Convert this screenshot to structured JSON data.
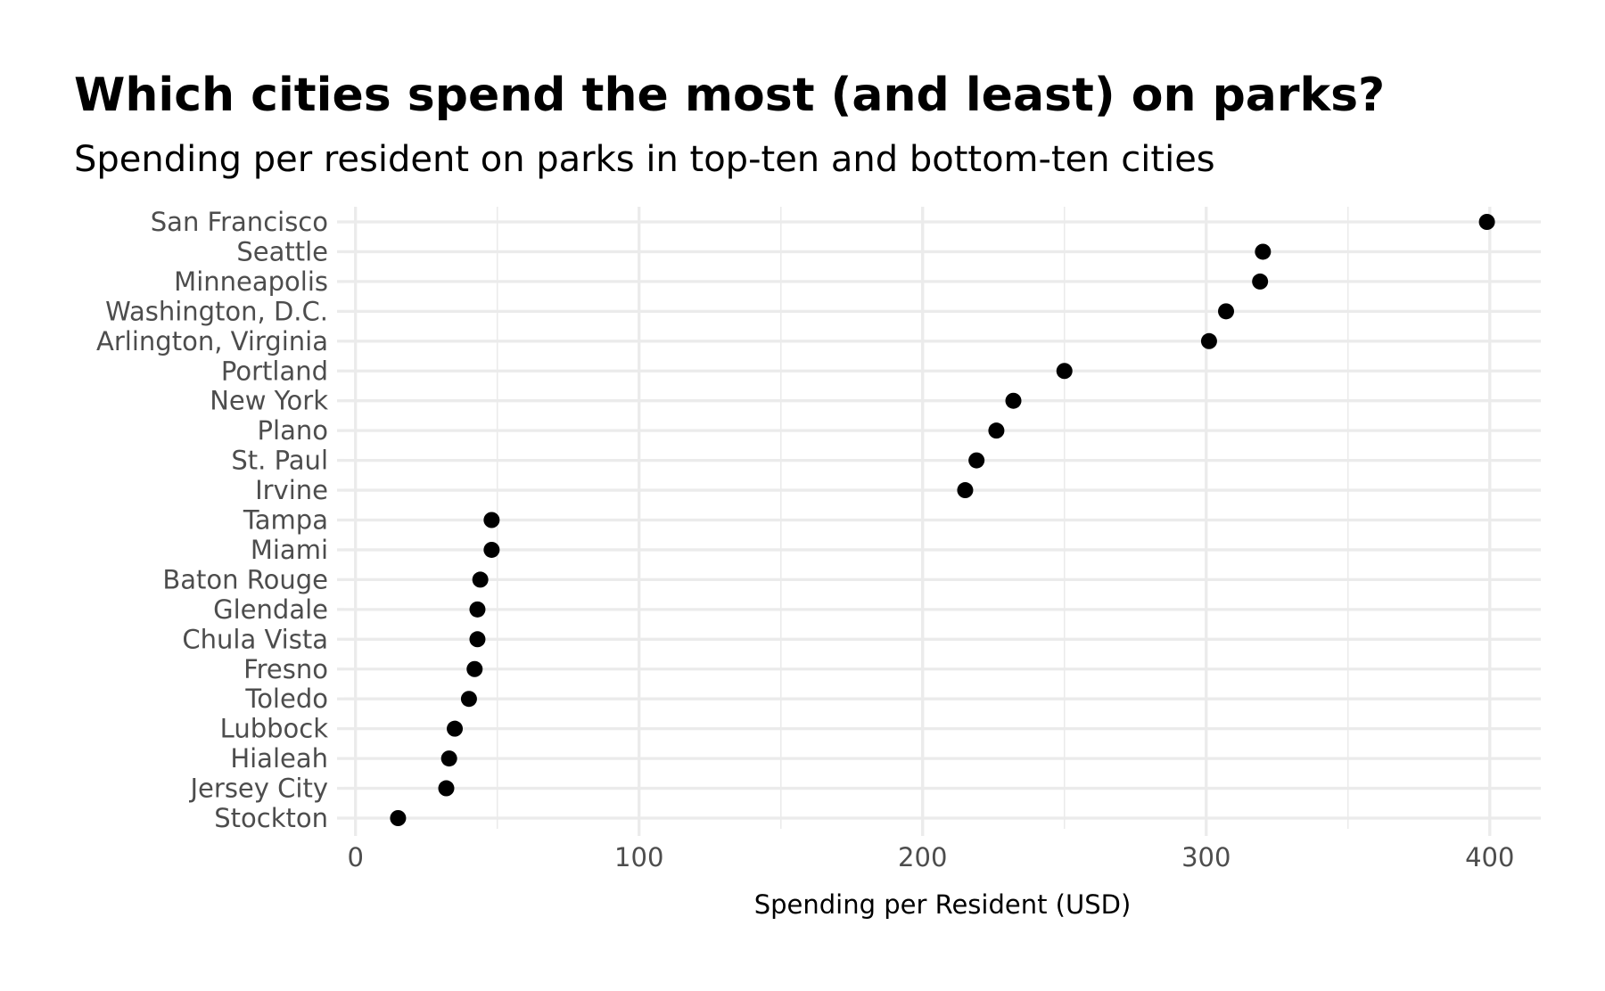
{
  "chart_data": {
    "type": "scatter",
    "title": "Which cities spend the most (and least) on parks?",
    "subtitle": "Spending per resident on parks in top-ten and bottom-ten cities",
    "xlabel": "Spending per Resident (USD)",
    "ylabel": "",
    "xlim": [
      -4,
      418
    ],
    "x_ticks": [
      0,
      100,
      200,
      300,
      400
    ],
    "x_tick_labels": [
      "0",
      "100",
      "200",
      "300",
      "400"
    ],
    "x_minor_ticks": [
      50,
      150,
      250,
      350
    ],
    "grid": true,
    "legend": "none",
    "point_color": "#000000",
    "gridline_color": "#ebebeb",
    "categories": [
      "San Francisco",
      "Seattle",
      "Minneapolis",
      "Washington, D.C.",
      "Arlington, Virginia",
      "Portland",
      "New York",
      "Plano",
      "St. Paul",
      "Irvine",
      "Tampa",
      "Miami",
      "Baton Rouge",
      "Glendale",
      "Chula Vista",
      "Fresno",
      "Toledo",
      "Lubbock",
      "Hialeah",
      "Jersey City",
      "Stockton"
    ],
    "values": [
      399,
      320,
      319,
      307,
      301,
      250,
      232,
      226,
      219,
      215,
      48,
      48,
      44,
      43,
      43,
      42,
      40,
      35,
      33,
      32,
      15
    ]
  }
}
